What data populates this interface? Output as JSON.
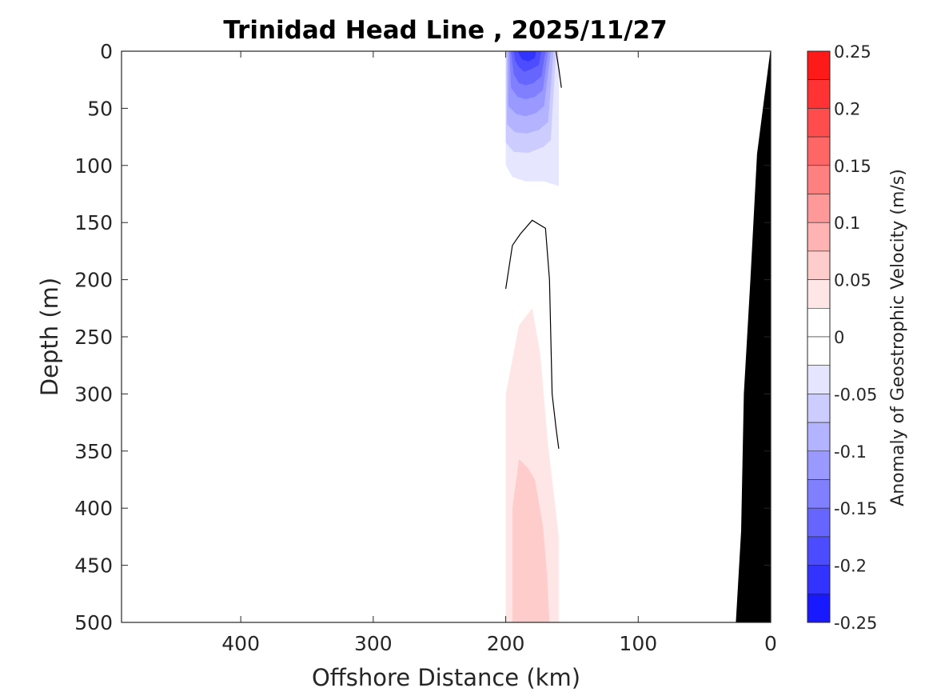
{
  "chart_data": {
    "type": "contour",
    "title": "Trinidad Head Line , 2025/11/27",
    "xlabel": "Offshore Distance (km)",
    "ylabel": "Depth (m)",
    "xlim": [
      490,
      0
    ],
    "ylim": [
      0,
      500
    ],
    "x_ticks": [
      400,
      300,
      200,
      100,
      0
    ],
    "y_ticks": [
      0,
      50,
      100,
      150,
      200,
      250,
      300,
      350,
      400,
      450,
      500
    ],
    "colorbar": {
      "label": "Anomaly of Geostrophic Velocity (m/s)",
      "range": [
        -0.25,
        0.25
      ],
      "step": 0.025,
      "tick_values": [
        0.25,
        0.2,
        0.15,
        0.1,
        0.05,
        0,
        -0.05,
        -0.1,
        -0.15,
        -0.2,
        -0.25
      ],
      "tick_labels": [
        "0.25",
        "0.2",
        "0.15",
        "0.1",
        "0.05",
        "0",
        "-0.05",
        "-0.1",
        "-0.15",
        "-0.2",
        "-0.25"
      ],
      "positive_color": "#ff0000",
      "negative_color": "#0000ff",
      "neutral_color": "#ffffff"
    },
    "filled_regions": [
      {
        "level": -0.025,
        "polygon": [
          [
            200,
            0
          ],
          [
            160,
            0
          ],
          [
            160,
            118
          ],
          [
            171,
            114
          ],
          [
            185,
            114
          ],
          [
            195,
            110
          ],
          [
            200,
            100
          ]
        ]
      },
      {
        "level": -0.05,
        "polygon": [
          [
            200,
            0
          ],
          [
            162,
            0
          ],
          [
            166,
            78
          ],
          [
            172,
            84
          ],
          [
            183,
            89
          ],
          [
            194,
            88
          ],
          [
            200,
            80
          ]
        ]
      },
      {
        "level": -0.075,
        "polygon": [
          [
            199,
            0
          ],
          [
            164,
            0
          ],
          [
            168,
            62
          ],
          [
            175,
            69
          ],
          [
            184,
            72
          ],
          [
            193,
            71
          ],
          [
            199,
            64
          ]
        ]
      },
      {
        "level": -0.1,
        "polygon": [
          [
            198,
            0
          ],
          [
            166,
            0
          ],
          [
            171,
            48
          ],
          [
            177,
            54
          ],
          [
            185,
            57
          ],
          [
            192,
            55
          ],
          [
            198,
            48
          ]
        ]
      },
      {
        "level": -0.125,
        "polygon": [
          [
            197,
            0
          ],
          [
            168,
            0
          ],
          [
            172,
            34
          ],
          [
            178,
            40
          ],
          [
            185,
            42
          ],
          [
            191,
            40
          ],
          [
            196,
            32
          ]
        ]
      },
      {
        "level": -0.15,
        "polygon": [
          [
            196,
            0
          ],
          [
            170,
            0
          ],
          [
            173,
            22
          ],
          [
            179,
            28
          ],
          [
            185,
            30
          ],
          [
            190,
            28
          ],
          [
            194,
            20
          ]
        ]
      },
      {
        "level": -0.175,
        "polygon": [
          [
            194,
            0
          ],
          [
            173,
            0
          ],
          [
            175,
            12
          ],
          [
            181,
            16
          ],
          [
            186,
            18
          ],
          [
            190,
            14
          ],
          [
            193,
            8
          ]
        ]
      },
      {
        "level": -0.2,
        "polygon": [
          [
            191,
            0
          ],
          [
            177,
            0
          ],
          [
            178,
            6
          ],
          [
            183,
            9
          ],
          [
            188,
            7
          ]
        ]
      },
      {
        "level": 0.025,
        "polygon": [
          [
            162,
            0
          ],
          [
            160,
            0
          ],
          [
            160,
            8
          ]
        ]
      },
      {
        "level": 0.025,
        "polygon": [
          [
            200,
            500
          ],
          [
            160,
            500
          ],
          [
            160,
            425
          ],
          [
            168,
            345
          ],
          [
            174,
            265
          ],
          [
            180,
            225
          ],
          [
            190,
            240
          ],
          [
            200,
            300
          ]
        ]
      },
      {
        "level": 0.05,
        "polygon": [
          [
            195,
            500
          ],
          [
            167,
            500
          ],
          [
            169,
            455
          ],
          [
            172,
            415
          ],
          [
            178,
            375
          ],
          [
            183,
            365
          ],
          [
            190,
            357
          ],
          [
            195,
            400
          ]
        ]
      }
    ],
    "zero_contours": [
      [
        [
          162,
          0
        ],
        [
          160,
          15
        ],
        [
          158,
          32
        ]
      ],
      [
        [
          200,
          208
        ],
        [
          195,
          170
        ],
        [
          189,
          160
        ],
        [
          180,
          148
        ],
        [
          170,
          155
        ],
        [
          167,
          200
        ],
        [
          165,
          300
        ],
        [
          162,
          330
        ],
        [
          160,
          348
        ]
      ]
    ],
    "bathymetry_polygon": [
      [
        0,
        0
      ],
      [
        0,
        500
      ],
      [
        26,
        500
      ],
      [
        22,
        420
      ],
      [
        20,
        300
      ],
      [
        15,
        200
      ],
      [
        10,
        90
      ]
    ]
  }
}
